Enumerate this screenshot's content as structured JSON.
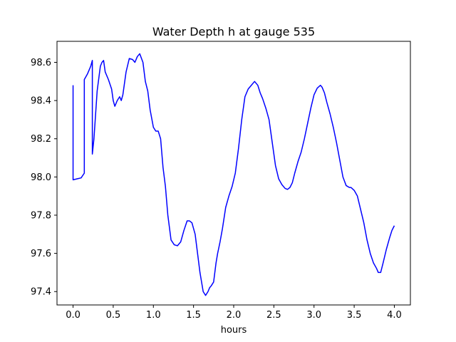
{
  "chart_data": {
    "type": "line",
    "title": "Water Depth h at gauge 535",
    "xlabel": "hours",
    "ylabel": "",
    "xlim": [
      -0.2,
      4.2
    ],
    "ylim": [
      97.33,
      98.71
    ],
    "xticks": [
      0.0,
      0.5,
      1.0,
      1.5,
      2.0,
      2.5,
      3.0,
      3.5,
      4.0
    ],
    "xtick_labels": [
      "0.0",
      "0.5",
      "1.0",
      "1.5",
      "2.0",
      "2.5",
      "3.0",
      "3.5",
      "4.0"
    ],
    "yticks": [
      97.4,
      97.6,
      97.8,
      98.0,
      98.2,
      98.4,
      98.6
    ],
    "ytick_labels": [
      "97.4",
      "97.6",
      "97.8",
      "98.0",
      "98.2",
      "98.4",
      "98.6"
    ],
    "grid": false,
    "legend": "none",
    "series": [
      {
        "color": "#0000ff",
        "x": [
          0.0,
          0.0,
          0.05,
          0.1,
          0.14,
          0.14,
          0.18,
          0.22,
          0.24,
          0.24,
          0.26,
          0.3,
          0.34,
          0.36,
          0.38,
          0.4,
          0.44,
          0.48,
          0.5,
          0.52,
          0.55,
          0.58,
          0.6,
          0.62,
          0.66,
          0.7,
          0.74,
          0.77,
          0.8,
          0.83,
          0.87,
          0.9,
          0.93,
          0.96,
          1.0,
          1.03,
          1.06,
          1.09,
          1.12,
          1.15,
          1.18,
          1.22,
          1.26,
          1.3,
          1.34,
          1.38,
          1.42,
          1.45,
          1.48,
          1.52,
          1.55,
          1.58,
          1.62,
          1.65,
          1.68,
          1.7,
          1.72,
          1.75,
          1.78,
          1.8,
          1.83,
          1.86,
          1.9,
          1.94,
          1.98,
          2.02,
          2.06,
          2.1,
          2.14,
          2.18,
          2.22,
          2.26,
          2.3,
          2.33,
          2.36,
          2.4,
          2.44,
          2.48,
          2.52,
          2.56,
          2.6,
          2.64,
          2.67,
          2.7,
          2.73,
          2.76,
          2.8,
          2.84,
          2.88,
          2.92,
          2.96,
          3.0,
          3.04,
          3.08,
          3.1,
          3.13,
          3.16,
          3.2,
          3.24,
          3.28,
          3.32,
          3.36,
          3.4,
          3.44,
          3.46,
          3.5,
          3.54,
          3.58,
          3.62,
          3.66,
          3.7,
          3.74,
          3.78,
          3.8,
          3.83,
          3.86,
          3.9,
          3.94,
          3.97,
          4.0
        ],
        "y": [
          98.48,
          97.985,
          97.99,
          97.995,
          98.02,
          98.51,
          98.54,
          98.58,
          98.61,
          98.12,
          98.2,
          98.45,
          98.58,
          98.6,
          98.61,
          98.55,
          98.51,
          98.46,
          98.4,
          98.37,
          98.4,
          98.42,
          98.4,
          98.43,
          98.55,
          98.62,
          98.615,
          98.6,
          98.63,
          98.645,
          98.6,
          98.5,
          98.45,
          98.35,
          98.26,
          98.24,
          98.24,
          98.2,
          98.05,
          97.95,
          97.8,
          97.67,
          97.645,
          97.64,
          97.66,
          97.72,
          97.77,
          97.77,
          97.76,
          97.7,
          97.6,
          97.5,
          97.4,
          97.38,
          97.4,
          97.42,
          97.43,
          97.45,
          97.55,
          97.6,
          97.66,
          97.73,
          97.84,
          97.9,
          97.95,
          98.02,
          98.15,
          98.3,
          98.42,
          98.46,
          98.48,
          98.5,
          98.48,
          98.44,
          98.41,
          98.36,
          98.3,
          98.18,
          98.06,
          97.99,
          97.96,
          97.94,
          97.935,
          97.945,
          97.97,
          98.02,
          98.08,
          98.13,
          98.2,
          98.28,
          98.36,
          98.43,
          98.465,
          98.48,
          98.47,
          98.44,
          98.39,
          98.33,
          98.26,
          98.18,
          98.09,
          98.0,
          97.955,
          97.945,
          97.945,
          97.93,
          97.9,
          97.83,
          97.76,
          97.67,
          97.6,
          97.55,
          97.52,
          97.5,
          97.5,
          97.55,
          97.62,
          97.68,
          97.72,
          97.745
        ]
      }
    ]
  }
}
